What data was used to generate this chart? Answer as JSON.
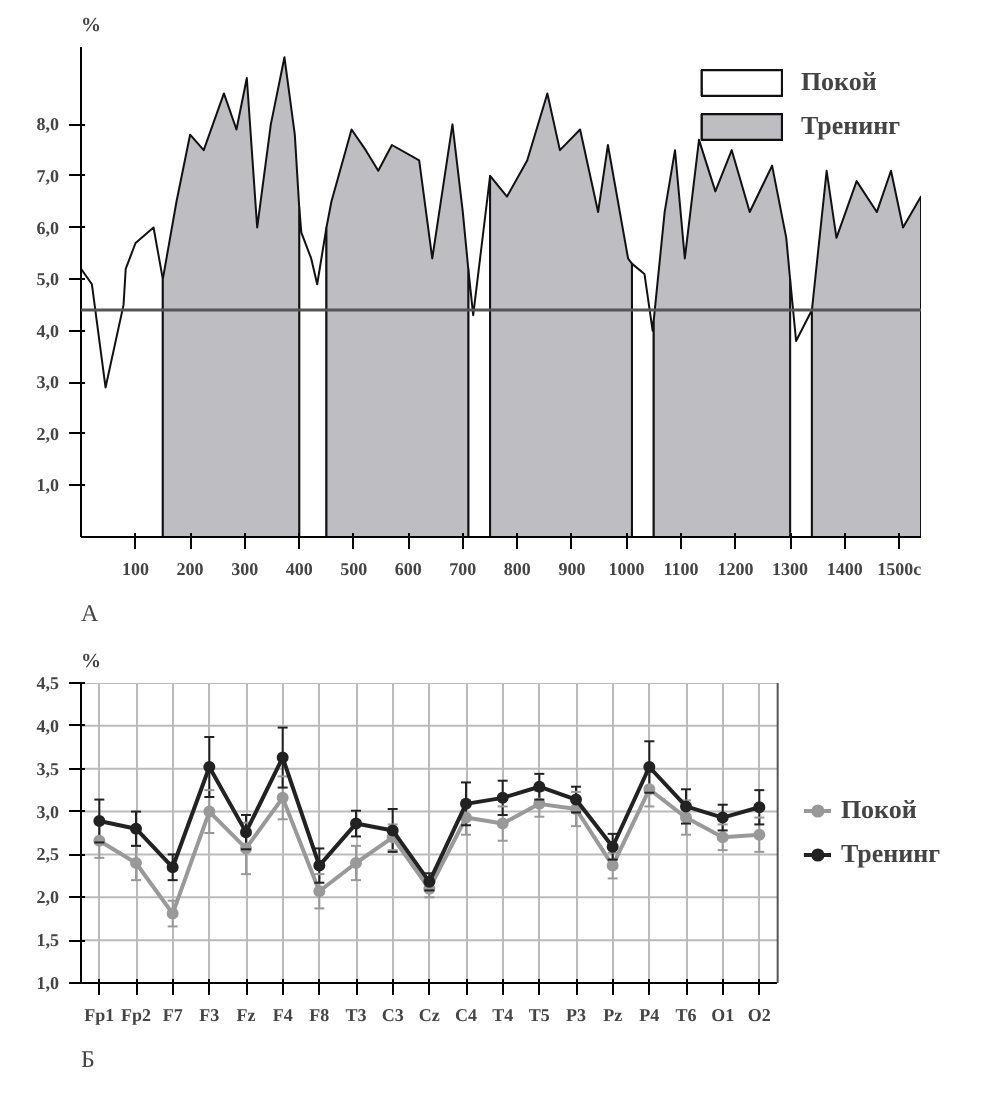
{
  "chart_data": [
    {
      "type": "area",
      "ylabel": "%",
      "annotations": [
        "А"
      ],
      "series": [
        {
          "name": "Покой",
          "type": "area",
          "color": "#ffffff",
          "x": [
            0,
            20,
            45,
            78,
            82,
            100,
            133,
            150,
            275,
            400,
            404,
            422,
            433,
            450,
            600,
            710,
            719,
            750,
            900,
            1010,
            1033,
            1048,
            1050,
            1200,
            1300,
            1311,
            1340
          ],
          "values": [
            5.2,
            4.9,
            2.9,
            4.5,
            5.2,
            5.7,
            6.0,
            5.0,
            null,
            6.4,
            5.9,
            5.4,
            4.9,
            6.0,
            null,
            5.2,
            4.3,
            7.0,
            null,
            5.3,
            5.1,
            4.0,
            4.2,
            null,
            5.0,
            3.8,
            4.4
          ]
        },
        {
          "name": "Тренинг",
          "type": "area",
          "color": "#bdbdc2",
          "x": [
            150,
            175,
            200,
            225,
            262,
            285,
            304,
            323,
            348,
            373,
            392,
            400,
            425,
            450,
            459,
            496,
            522,
            545,
            570,
            620,
            644,
            681,
            700,
            710,
            730,
            750,
            781,
            818,
            855,
            878,
            915,
            948,
            966,
            1003,
            1010,
            1030,
            1050,
            1070,
            1089,
            1107,
            1133,
            1163,
            1193,
            1226,
            1267,
            1293,
            1300,
            1320,
            1340,
            1367,
            1385,
            1422,
            1459,
            1485,
            1507,
            1540
          ],
          "values": [
            5.0,
            6.5,
            7.8,
            7.5,
            8.6,
            7.9,
            8.9,
            6.0,
            8.0,
            9.3,
            7.8,
            6.4,
            null,
            6.0,
            6.5,
            7.9,
            7.5,
            7.1,
            7.6,
            7.3,
            5.4,
            8.0,
            6.3,
            5.2,
            null,
            7.0,
            6.6,
            7.3,
            8.6,
            7.5,
            7.9,
            6.3,
            7.6,
            5.4,
            5.3,
            null,
            4.2,
            6.3,
            7.5,
            5.4,
            7.7,
            6.7,
            7.5,
            6.3,
            7.2,
            5.8,
            5.0,
            null,
            4.4,
            7.1,
            5.8,
            6.9,
            6.3,
            7.1,
            6.0,
            6.6
          ]
        }
      ],
      "xlim": [
        0,
        1540
      ],
      "ylim": [
        0,
        9.5
      ],
      "xticks": [
        100,
        200,
        300,
        400,
        500,
        600,
        700,
        800,
        900,
        1000,
        1100,
        1200,
        1300,
        1400,
        {
          "value": 1500,
          "label": "1500с"
        }
      ],
      "yticks": [
        {
          "value": 1,
          "label": "1,0"
        },
        {
          "value": 2,
          "label": "2,0"
        },
        {
          "value": 3,
          "label": "3,0"
        },
        {
          "value": 4,
          "label": "4,0"
        },
        {
          "value": 5,
          "label": "5,0"
        },
        {
          "value": 6,
          "label": "6,0"
        },
        {
          "value": 7,
          "label": "7,0"
        },
        {
          "value": 8,
          "label": "8,0"
        }
      ],
      "ref_lines": [
        {
          "axis": "y",
          "value": 4.4,
          "color": "#555555"
        }
      ],
      "legend": "top right",
      "line_style": "solid"
    },
    {
      "type": "line",
      "ylabel": "%",
      "annotations": [
        "Б"
      ],
      "categories": [
        "Fp1",
        "Fp2",
        "F7",
        "F3",
        "Fz",
        "F4",
        "F8",
        "T3",
        "C3",
        "Cz",
        "C4",
        "T4",
        "T5",
        "P3",
        "Pz",
        "P4",
        "T6",
        "O1",
        "O2"
      ],
      "series": [
        {
          "name": "Покой",
          "color": "#999999",
          "values": [
            2.66,
            2.4,
            1.81,
            3.0,
            2.57,
            3.16,
            2.07,
            2.4,
            2.7,
            2.1,
            2.93,
            2.86,
            3.09,
            3.03,
            2.37,
            3.26,
            2.93,
            2.7,
            2.73
          ],
          "errors": [
            0.2,
            0.2,
            0.15,
            0.25,
            0.3,
            0.25,
            0.2,
            0.2,
            0.15,
            0.1,
            0.2,
            0.2,
            0.15,
            0.2,
            0.15,
            0.2,
            0.2,
            0.15,
            0.2
          ]
        },
        {
          "name": "Тренинг",
          "color": "#222222",
          "values": [
            2.89,
            2.8,
            2.35,
            3.52,
            2.76,
            3.63,
            2.37,
            2.86,
            2.78,
            2.18,
            3.09,
            3.16,
            3.29,
            3.14,
            2.59,
            3.52,
            3.06,
            2.93,
            3.05
          ],
          "errors": [
            0.25,
            0.2,
            0.15,
            0.35,
            0.2,
            0.35,
            0.2,
            0.15,
            0.25,
            0.1,
            0.25,
            0.2,
            0.15,
            0.15,
            0.15,
            0.3,
            0.2,
            0.15,
            0.2
          ]
        }
      ],
      "ylim": [
        1.0,
        4.5
      ],
      "yticks": [
        {
          "value": 1.0,
          "label": "1,0"
        },
        {
          "value": 1.5,
          "label": "1,5"
        },
        {
          "value": 2.0,
          "label": "2,0"
        },
        {
          "value": 2.5,
          "label": "2,5"
        },
        {
          "value": 3.0,
          "label": "3,0"
        },
        {
          "value": 3.5,
          "label": "3,5"
        },
        {
          "value": 4.0,
          "label": "4,0"
        },
        {
          "value": 4.5,
          "label": "4,5"
        }
      ],
      "legend": "right",
      "grid": true,
      "marker": "circle",
      "line_style": "solid"
    }
  ]
}
